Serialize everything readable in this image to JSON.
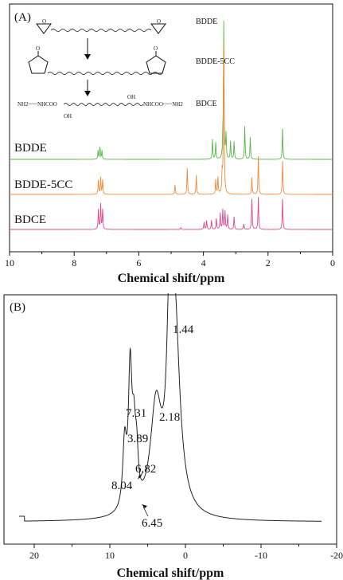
{
  "chart_data": [
    {
      "type": "line",
      "panel_label": "(A)",
      "xlabel": "Chemical shift/ppm",
      "xlim": [
        10,
        0
      ],
      "x_reversed": true,
      "x_ticks": [
        "10",
        "8",
        "6",
        "4",
        "2",
        "0"
      ],
      "scheme_labels": [
        "BDDE",
        "BDDE-5CC",
        "BDCE"
      ],
      "scheme_chem": {
        "oh_top": "OH",
        "oh_bottom": "OH",
        "left_group": "NH2~~~NHCOO",
        "right_group": "NHCOO~~~NH2",
        "carbonyl": "O"
      },
      "series": [
        {
          "name": "BDDE",
          "color": "#58b548",
          "peaks": [
            {
              "x": 7.26,
              "h": 0.2
            },
            {
              "x": 7.2,
              "h": 0.28
            },
            {
              "x": 7.14,
              "h": 0.2
            },
            {
              "x": 3.72,
              "h": 0.45
            },
            {
              "x": 3.62,
              "h": 0.38
            },
            {
              "x": 3.4,
              "h": 0.32
            },
            {
              "x": 3.37,
              "h": 3.1
            },
            {
              "x": 3.3,
              "h": 0.55
            },
            {
              "x": 3.16,
              "h": 0.4
            },
            {
              "x": 3.05,
              "h": 0.4
            },
            {
              "x": 2.72,
              "h": 0.75
            },
            {
              "x": 2.55,
              "h": 0.5
            },
            {
              "x": 1.55,
              "h": 0.7
            }
          ]
        },
        {
          "name": "BDDE-5CC",
          "color": "#f08a3c",
          "peaks": [
            {
              "x": 7.25,
              "h": 0.3
            },
            {
              "x": 7.18,
              "h": 0.35
            },
            {
              "x": 7.12,
              "h": 0.3
            },
            {
              "x": 4.88,
              "h": 0.2
            },
            {
              "x": 4.5,
              "h": 0.55
            },
            {
              "x": 4.22,
              "h": 0.4
            },
            {
              "x": 3.62,
              "h": 0.3
            },
            {
              "x": 3.55,
              "h": 0.35
            },
            {
              "x": 3.42,
              "h": 0.4
            },
            {
              "x": 3.37,
              "h": 3.8
            },
            {
              "x": 2.5,
              "h": 0.35
            },
            {
              "x": 2.3,
              "h": 0.8
            },
            {
              "x": 1.55,
              "h": 0.7
            }
          ]
        },
        {
          "name": "BDCE",
          "color": "#d6488c",
          "peaks": [
            {
              "x": 7.25,
              "h": 0.55
            },
            {
              "x": 7.18,
              "h": 0.7
            },
            {
              "x": 7.12,
              "h": 0.55
            },
            {
              "x": 4.7,
              "h": 0.05
            },
            {
              "x": 3.98,
              "h": 0.2
            },
            {
              "x": 3.9,
              "h": 0.25
            },
            {
              "x": 3.75,
              "h": 0.25
            },
            {
              "x": 3.6,
              "h": 0.3
            },
            {
              "x": 3.48,
              "h": 0.45
            },
            {
              "x": 3.4,
              "h": 0.55
            },
            {
              "x": 3.33,
              "h": 0.5
            },
            {
              "x": 3.25,
              "h": 0.4
            },
            {
              "x": 3.05,
              "h": 0.35
            },
            {
              "x": 2.75,
              "h": 0.15
            },
            {
              "x": 2.5,
              "h": 0.85
            },
            {
              "x": 2.3,
              "h": 0.9
            },
            {
              "x": 1.55,
              "h": 0.85
            }
          ]
        }
      ]
    },
    {
      "type": "line",
      "panel_label": "(B)",
      "xlabel": "Chemical shift/ppm",
      "xlim": [
        24,
        -20
      ],
      "x_reversed": true,
      "x_ticks": [
        "20",
        "10",
        "0",
        "-10",
        "-20"
      ],
      "series": [
        {
          "color": "#222222",
          "baseline": 0.03,
          "peaks": [
            {
              "x": 8.04,
              "h": 0.28,
              "w": 0.3
            },
            {
              "x": 7.31,
              "h": 0.58,
              "w": 0.28
            },
            {
              "x": 6.82,
              "h": 0.27,
              "w": 0.28
            },
            {
              "x": 6.45,
              "h": 0.18,
              "w": 0.25
            },
            {
              "x": 3.89,
              "h": 0.45,
              "w": 0.9
            },
            {
              "x": 2.18,
              "h": 0.5,
              "w": 0.35
            },
            {
              "x": 1.44,
              "h": 0.9,
              "w": 0.8
            }
          ]
        }
      ],
      "annotations": [
        {
          "text": "1.44",
          "x": 1.44
        },
        {
          "text": "7.31",
          "x": 7.31
        },
        {
          "text": "2.18",
          "x": 2.18
        },
        {
          "text": "3.89",
          "x": 3.89
        },
        {
          "text": "6.82",
          "x": 6.82
        },
        {
          "text": "8.04",
          "x": 8.04
        },
        {
          "text": "6.45",
          "x": 6.45
        }
      ]
    }
  ]
}
